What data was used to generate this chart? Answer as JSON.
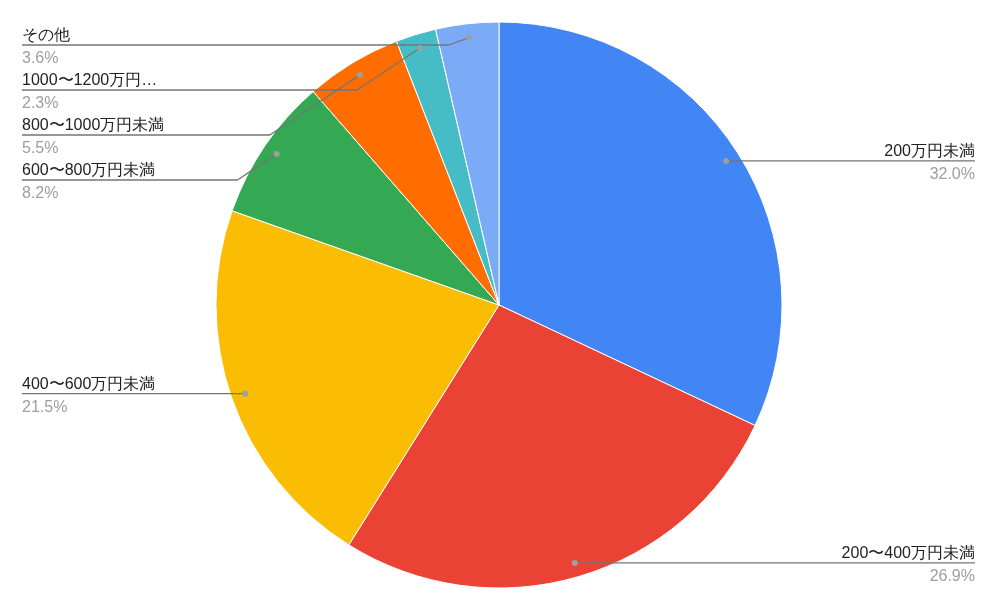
{
  "chart_data": {
    "type": "pie",
    "categories": [
      "200万円未満",
      "200〜400万円未満",
      "400〜600万円未満",
      "600〜800万円未満",
      "800〜1000万円未満",
      "1000〜1200万円…",
      "その他"
    ],
    "values": [
      32.0,
      26.9,
      21.5,
      8.2,
      5.5,
      2.3,
      3.6
    ],
    "value_labels": [
      "32.0%",
      "26.9%",
      "21.5%",
      "8.2%",
      "5.5%",
      "2.3%",
      "3.6%"
    ],
    "colors": [
      "#4285f4",
      "#ea4335",
      "#fbbc04",
      "#34a853",
      "#ff6d01",
      "#46bdc6",
      "#7baaf7"
    ]
  }
}
